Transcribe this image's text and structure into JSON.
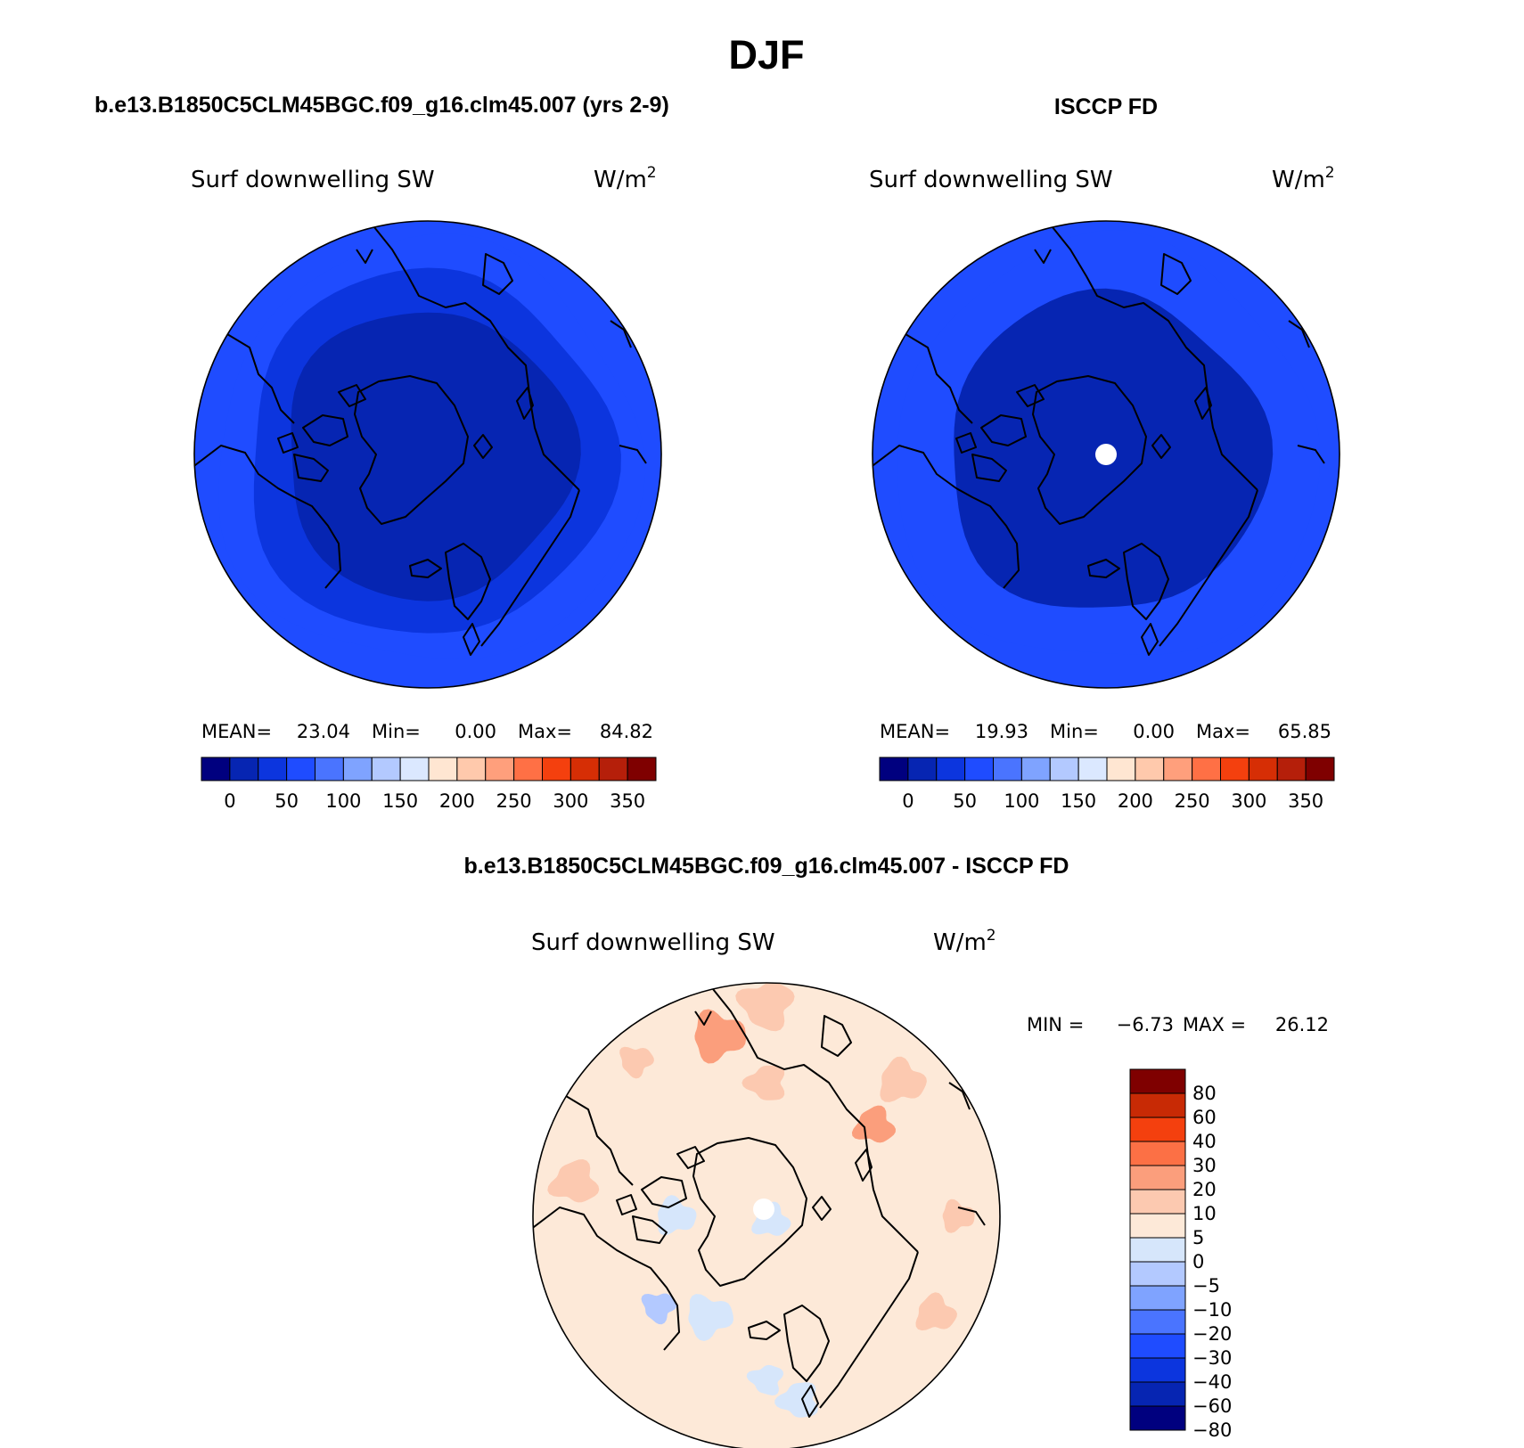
{
  "figure": {
    "title": "DJF"
  },
  "colors": {
    "abs_palette": [
      "#00007f",
      "#0625b2",
      "#0c35de",
      "#1f4cff",
      "#4a74ff",
      "#7fa3ff",
      "#b3c9ff",
      "#dbe8ff",
      "#ffe6d2",
      "#ffc9ac",
      "#ff9f7c",
      "#ff7045",
      "#f4400e",
      "#d62e05",
      "#b51f0a",
      "#7f0000"
    ],
    "diff_palette": [
      "#00007f",
      "#0625b2",
      "#0c35de",
      "#1f4cff",
      "#4a74ff",
      "#7fa3ff",
      "#b3c9ff",
      "#d6e6fb",
      "#fde9d8",
      "#fcc9b0",
      "#fb9e7c",
      "#fc7045",
      "#f4400e",
      "#c82a05",
      "#7f0000"
    ],
    "coastline": "#000000"
  },
  "chart_data": [
    {
      "type": "heatmap",
      "projection": "north-polar-stereographic",
      "title": "b.e13.B1850C5CLM45BGC.f09_g16.clm45.007 (yrs 2-9)",
      "field_label": "Surf downwelling SW",
      "units_label": "W/m",
      "units_exponent": "2",
      "stats": {
        "mean_label": "MEAN=",
        "mean": "23.04",
        "min_label": "Min=",
        "min": "0.00",
        "max_label": "Max=",
        "max": "84.82"
      },
      "colorbar": {
        "orientation": "horizontal",
        "levels": [
          0,
          25,
          50,
          75,
          100,
          125,
          150,
          175,
          200,
          225,
          250,
          275,
          300,
          325,
          350
        ],
        "tick_labels": [
          "0",
          "50",
          "100",
          "150",
          "200",
          "250",
          "300",
          "350"
        ],
        "tick_values": [
          0,
          50,
          100,
          150,
          200,
          250,
          300,
          350
        ]
      },
      "rings": [
        {
          "outer_lat": 30,
          "value": 55
        },
        {
          "outer_lat": 37,
          "value": 42
        },
        {
          "outer_lat": 47,
          "value": 15
        }
      ],
      "missing_pole": false
    },
    {
      "type": "heatmap",
      "projection": "north-polar-stereographic",
      "title": "ISCCP FD",
      "field_label": "Surf downwelling SW",
      "units_label": "W/m",
      "units_exponent": "2",
      "stats": {
        "mean_label": "MEAN=",
        "mean": "19.93",
        "min_label": "Min=",
        "min": "0.00",
        "max_label": "Max=",
        "max": "65.85"
      },
      "colorbar": {
        "orientation": "horizontal",
        "levels": [
          0,
          25,
          50,
          75,
          100,
          125,
          150,
          175,
          200,
          225,
          250,
          275,
          300,
          325,
          350
        ],
        "tick_labels": [
          "0",
          "50",
          "100",
          "150",
          "200",
          "250",
          "300",
          "350"
        ],
        "tick_values": [
          0,
          50,
          100,
          150,
          200,
          250,
          300,
          350
        ]
      },
      "rings": [
        {
          "outer_lat": 30,
          "value": 55
        },
        {
          "outer_lat": 43,
          "value": 15
        }
      ],
      "missing_pole": true
    },
    {
      "type": "heatmap",
      "projection": "north-polar-stereographic",
      "title": "b.e13.B1850C5CLM45BGC.f09_g16.clm45.007 - ISCCP FD",
      "field_label": "Surf downwelling SW",
      "units_label": "W/m",
      "units_exponent": "2",
      "stats": {
        "min_label": "MIN =",
        "min": "−6.73",
        "max_label": "MAX =",
        "max": "26.12"
      },
      "colorbar": {
        "orientation": "vertical",
        "levels": [
          -80,
          -60,
          -40,
          -30,
          -20,
          -10,
          -5,
          0,
          5,
          10,
          20,
          30,
          40,
          60,
          80
        ],
        "tick_labels": [
          "80",
          "60",
          "40",
          "30",
          "20",
          "10",
          "5",
          "0",
          "−5",
          "−10",
          "−20",
          "−30",
          "−40",
          "−60",
          "−80"
        ]
      },
      "base_value": 2,
      "patches": [
        {
          "lon": -45,
          "lat": 88,
          "r_deg": 5.5,
          "value": -3
        },
        {
          "lon": 90,
          "lat": 62,
          "r_deg": 6,
          "value": -2
        },
        {
          "lon": 30,
          "lat": 55,
          "r_deg": 7,
          "value": -3
        },
        {
          "lon": 50,
          "lat": 48,
          "r_deg": 5,
          "value": -6
        },
        {
          "lon": 0,
          "lat": 42,
          "r_deg": 5,
          "value": -2
        },
        {
          "lon": -10,
          "lat": 36,
          "r_deg": 6,
          "value": -2
        },
        {
          "lon": -130,
          "lat": 48,
          "r_deg": 6,
          "value": 12
        },
        {
          "lon": -135,
          "lat": 35,
          "r_deg": 7,
          "value": 8
        },
        {
          "lon": 165,
          "lat": 36,
          "r_deg": 8,
          "value": 12
        },
        {
          "lon": 140,
          "lat": 32,
          "r_deg": 5,
          "value": 8
        },
        {
          "lon": 180,
          "lat": 30,
          "r_deg": 8,
          "value": 8
        },
        {
          "lon": -180,
          "lat": 50,
          "r_deg": 6,
          "value": 8
        },
        {
          "lon": 100,
          "lat": 34,
          "r_deg": 7,
          "value": 8
        },
        {
          "lon": -60,
          "lat": 34,
          "r_deg": 6,
          "value": 8
        },
        {
          "lon": -90,
          "lat": 35,
          "r_deg": 5,
          "value": 8
        }
      ],
      "missing_pole": true
    }
  ]
}
